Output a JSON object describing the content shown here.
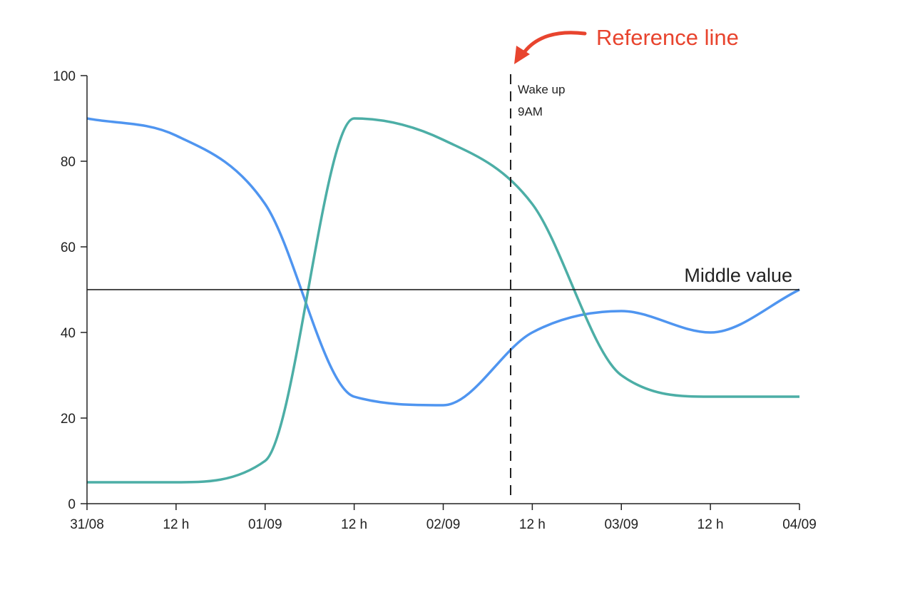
{
  "chart_data": {
    "type": "line",
    "x": [
      "31/08 00:00",
      "31/08 12:00",
      "01/09 00:00",
      "01/09 12:00",
      "02/09 00:00",
      "02/09 12:00",
      "03/09 00:00",
      "03/09 12:00",
      "04/09 00:00"
    ],
    "x_tick_labels": [
      "31/08",
      "12 h",
      "01/09",
      "12 h",
      "02/09",
      "12 h",
      "03/09",
      "12 h",
      "04/09"
    ],
    "y_ticks": [
      0,
      20,
      40,
      60,
      80,
      100
    ],
    "ylim": [
      0,
      100
    ],
    "grid": false,
    "series": [
      {
        "color": "#4f95f0",
        "values": [
          90,
          86,
          70,
          25,
          23,
          40,
          45,
          40,
          50
        ]
      },
      {
        "color": "#4caea6",
        "values": [
          5,
          5,
          10,
          90,
          85,
          70,
          30,
          25,
          25
        ]
      }
    ],
    "horizontal_reference": {
      "y": 50,
      "label": "Middle value"
    },
    "vertical_reference": {
      "x": "02/09 09:00",
      "label_line1": "Wake up",
      "label_line2": "9AM"
    },
    "annotation": {
      "text": "Reference line",
      "color": "#e8442e"
    }
  }
}
